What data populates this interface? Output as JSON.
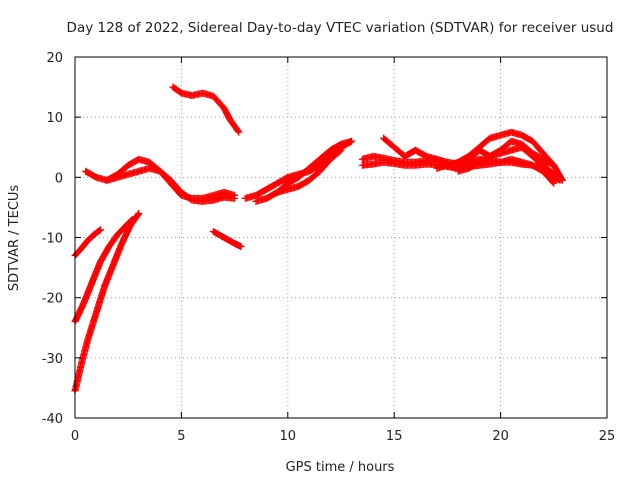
{
  "chart_data": {
    "type": "scatter",
    "title": "Day 128 of 2022, Sidereal Day-to-day VTEC variation (SDTVAR) for receiver usud",
    "xlabel": "GPS time / hours",
    "ylabel": "SDTVAR / TECUs",
    "xlim": [
      0,
      25
    ],
    "ylim": [
      -40,
      20
    ],
    "xticks": [
      0,
      5,
      10,
      15,
      20,
      25
    ],
    "yticks": [
      -40,
      -30,
      -20,
      -10,
      0,
      10,
      20
    ],
    "grid": true,
    "marker": "+",
    "colors": {
      "series": "#ff0000",
      "grid": "#a0a0a0",
      "axes": "#000000"
    },
    "series": [
      {
        "name": "s1",
        "x": [
          0,
          0.3,
          0.6,
          0.9,
          1.2
        ],
        "y": [
          -13,
          -11.8,
          -10.5,
          -9.5,
          -8.7
        ]
      },
      {
        "name": "s2",
        "x": [
          0,
          0.4,
          0.8,
          1.2,
          1.6,
          2.0,
          2.4,
          2.7
        ],
        "y": [
          -24,
          -21,
          -17.5,
          -14,
          -11.5,
          -9.5,
          -8,
          -7
        ]
      },
      {
        "name": "s3",
        "x": [
          0,
          0.3,
          0.6,
          1.0,
          1.4,
          1.8,
          2.2,
          2.6,
          3.0
        ],
        "y": [
          -35.5,
          -31,
          -27,
          -22.5,
          -18,
          -14.5,
          -11,
          -8,
          -6
        ]
      },
      {
        "name": "s4",
        "x": [
          0.5,
          1.0,
          1.5,
          2.0,
          2.5,
          3.0,
          3.5,
          4.0,
          4.5,
          5.0,
          5.5,
          6.0,
          6.5,
          7.0,
          7.5
        ],
        "y": [
          1,
          0,
          -0.5,
          0.5,
          2,
          3,
          2.5,
          1,
          -1,
          -3,
          -3.5,
          -3.5,
          -3,
          -2.5,
          -3
        ]
      },
      {
        "name": "s5",
        "x": [
          1.5,
          2.0,
          2.5,
          3.0,
          3.5,
          4.0,
          4.5,
          5.0,
          5.5,
          6.0,
          6.5,
          7.0,
          7.5
        ],
        "y": [
          -0.5,
          0,
          0.5,
          1,
          1.5,
          1,
          -0.5,
          -2.5,
          -3.8,
          -4,
          -3.8,
          -3.3,
          -3.5
        ]
      },
      {
        "name": "s6",
        "x": [
          4.6,
          5.0,
          5.5,
          6.0,
          6.5,
          7.0,
          7.3,
          7.7
        ],
        "y": [
          15,
          14,
          13.6,
          14,
          13.5,
          11.5,
          9.5,
          7.5
        ]
      },
      {
        "name": "s7",
        "x": [
          6.5,
          7.0,
          7.5,
          7.8
        ],
        "y": [
          -9,
          -10,
          -11,
          -11.5
        ]
      },
      {
        "name": "s8",
        "x": [
          8.0,
          8.5,
          9.0,
          9.5,
          10.0,
          10.5,
          11.0,
          11.5,
          12.0,
          12.5,
          13.0
        ],
        "y": [
          -3.5,
          -3,
          -2,
          -1,
          0,
          0.5,
          1,
          2,
          3.5,
          5,
          6
        ]
      },
      {
        "name": "s9",
        "x": [
          8.5,
          9.0,
          9.5,
          10.0,
          10.5,
          11.0,
          11.5,
          12.0,
          12.5
        ],
        "y": [
          -4,
          -3.5,
          -2.5,
          -2,
          -1.5,
          -0.5,
          1,
          3,
          4.5
        ]
      },
      {
        "name": "s10",
        "x": [
          9.5,
          10.0,
          10.5,
          11.0,
          11.5,
          12.0,
          12.5,
          13.0
        ],
        "y": [
          -2.5,
          -1,
          0,
          1.5,
          3,
          4.5,
          5.5,
          6
        ]
      },
      {
        "name": "s11",
        "x": [
          13.5,
          14.0,
          14.5,
          15.0,
          15.5,
          16.0,
          16.5,
          17.0,
          17.5,
          18.0,
          18.5,
          19.0,
          19.5,
          20.0,
          20.5,
          21.0,
          21.5,
          22.0,
          22.5,
          22.8
        ],
        "y": [
          3,
          3.5,
          3.2,
          2.8,
          2.5,
          2.5,
          2.8,
          3,
          2.5,
          2.2,
          2.5,
          3,
          2.8,
          2.5,
          2.5,
          2.2,
          2,
          1.5,
          0,
          -0.5
        ]
      },
      {
        "name": "s12",
        "x": [
          14.5,
          15.0,
          15.5,
          16.0,
          16.5,
          17.0,
          17.5,
          18.0,
          18.5,
          19.0,
          19.5,
          20.0,
          20.5,
          21.0,
          21.5,
          22.0,
          22.5
        ],
        "y": [
          6.5,
          5,
          3.5,
          4.5,
          3.5,
          3,
          2,
          1.5,
          3,
          4.5,
          3.5,
          4.5,
          6,
          5.5,
          4,
          3,
          2
        ]
      },
      {
        "name": "s13",
        "x": [
          17.0,
          17.5,
          18.0,
          18.5,
          19.0,
          19.5,
          20.0,
          20.5,
          21.0,
          21.5,
          22.0,
          22.5,
          22.9
        ],
        "y": [
          1.5,
          2,
          2.5,
          3.5,
          5,
          6.5,
          7,
          7.5,
          7,
          6,
          4,
          2,
          -0.5
        ]
      },
      {
        "name": "s14",
        "x": [
          18.0,
          18.5,
          19.0,
          19.5,
          20.0,
          20.5,
          21.0,
          21.5,
          22.0,
          22.5
        ],
        "y": [
          1,
          1.5,
          2.5,
          3.5,
          4,
          4.5,
          5,
          3.5,
          2,
          0.5
        ]
      },
      {
        "name": "s15",
        "x": [
          13.5,
          14.0,
          14.5,
          15.0,
          15.5,
          16.0,
          16.5,
          17.0,
          17.5,
          18.0,
          18.5,
          19.0,
          19.5,
          20.0,
          20.5,
          21.0,
          21.5,
          22.0,
          22.5
        ],
        "y": [
          2,
          2.2,
          2.5,
          2.3,
          2,
          2,
          2.2,
          2.1,
          1.8,
          1.5,
          1.8,
          2,
          2.2,
          2.5,
          3,
          2.5,
          2,
          1,
          -1
        ]
      }
    ]
  }
}
